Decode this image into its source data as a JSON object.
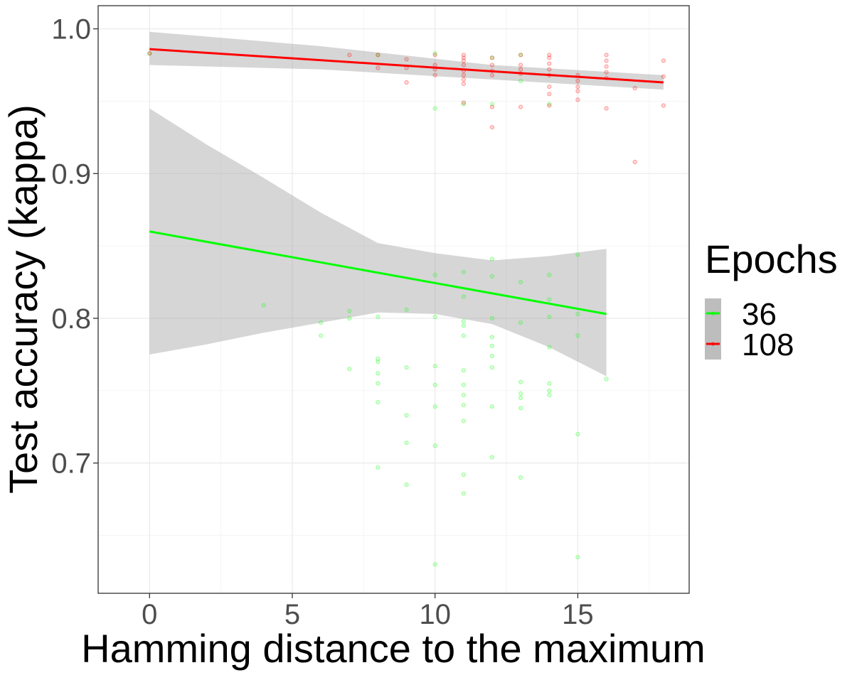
{
  "chart_data": {
    "type": "scatter",
    "xlabel": "Hamming distance to the maximum",
    "ylabel": "Test accuracy (kappa)",
    "xlim": [
      -1.8,
      18.9
    ],
    "ylim": [
      0.61,
      1.016
    ],
    "x_ticks": [
      "0",
      "5",
      "10",
      "15"
    ],
    "x_tick_values": [
      0,
      5,
      10,
      15
    ],
    "y_ticks": [
      "0.7",
      "0.8",
      "0.9",
      "1.0"
    ],
    "y_tick_values": [
      0.7,
      0.8,
      0.9,
      1.0
    ],
    "grid": true,
    "legend": {
      "title": "Epochs",
      "position": "right"
    },
    "series": [
      {
        "name": "36",
        "color": "#00ff00",
        "points": [
          [
            0,
            0.983
          ],
          [
            4,
            0.809
          ],
          [
            6,
            0.797
          ],
          [
            6,
            0.788
          ],
          [
            7,
            0.805
          ],
          [
            7,
            0.8
          ],
          [
            7,
            0.765
          ],
          [
            8,
            0.982
          ],
          [
            8,
            0.801
          ],
          [
            8,
            0.772
          ],
          [
            8,
            0.77
          ],
          [
            8,
            0.762
          ],
          [
            8,
            0.755
          ],
          [
            8,
            0.742
          ],
          [
            8,
            0.697
          ],
          [
            9,
            0.806
          ],
          [
            9,
            0.766
          ],
          [
            9,
            0.733
          ],
          [
            9,
            0.714
          ],
          [
            9,
            0.685
          ],
          [
            10,
            0.983
          ],
          [
            10,
            0.945
          ],
          [
            10,
            0.83
          ],
          [
            10,
            0.801
          ],
          [
            10,
            0.767
          ],
          [
            10,
            0.754
          ],
          [
            10,
            0.739
          ],
          [
            10,
            0.712
          ],
          [
            10,
            0.63
          ],
          [
            11,
            0.948
          ],
          [
            11,
            0.832
          ],
          [
            11,
            0.815
          ],
          [
            11,
            0.798
          ],
          [
            11,
            0.795
          ],
          [
            11,
            0.788
          ],
          [
            11,
            0.764
          ],
          [
            11,
            0.754
          ],
          [
            11,
            0.747
          ],
          [
            11,
            0.74
          ],
          [
            11,
            0.729
          ],
          [
            11,
            0.692
          ],
          [
            11,
            0.679
          ],
          [
            12,
            0.98
          ],
          [
            12,
            0.948
          ],
          [
            12,
            0.841
          ],
          [
            12,
            0.829
          ],
          [
            12,
            0.8
          ],
          [
            12,
            0.787
          ],
          [
            12,
            0.781
          ],
          [
            12,
            0.774
          ],
          [
            12,
            0.766
          ],
          [
            12,
            0.739
          ],
          [
            12,
            0.704
          ],
          [
            13,
            0.982
          ],
          [
            13,
            0.964
          ],
          [
            13,
            0.825
          ],
          [
            13,
            0.797
          ],
          [
            13,
            0.756
          ],
          [
            13,
            0.748
          ],
          [
            13,
            0.745
          ],
          [
            13,
            0.738
          ],
          [
            13,
            0.69
          ],
          [
            14,
            0.948
          ],
          [
            14,
            0.83
          ],
          [
            14,
            0.813
          ],
          [
            14,
            0.801
          ],
          [
            14,
            0.78
          ],
          [
            14,
            0.755
          ],
          [
            14,
            0.75
          ],
          [
            14,
            0.747
          ],
          [
            15,
            0.844
          ],
          [
            15,
            0.803
          ],
          [
            15,
            0.788
          ],
          [
            15,
            0.72
          ],
          [
            15,
            0.635
          ],
          [
            16,
            0.758
          ]
        ],
        "fit": {
          "x": [
            0,
            16
          ],
          "y": [
            0.86,
            0.803
          ]
        },
        "ci": {
          "x": [
            0,
            2,
            4,
            6,
            8,
            10,
            12,
            14,
            16
          ],
          "upper": [
            0.945,
            0.92,
            0.897,
            0.873,
            0.852,
            0.845,
            0.84,
            0.843,
            0.848
          ],
          "lower": [
            0.775,
            0.782,
            0.79,
            0.797,
            0.804,
            0.803,
            0.796,
            0.78,
            0.76
          ]
        }
      },
      {
        "name": "108",
        "color": "#ff0000",
        "points": [
          [
            0,
            0.983
          ],
          [
            7,
            0.982
          ],
          [
            8,
            0.982
          ],
          [
            8,
            0.973
          ],
          [
            9,
            0.979
          ],
          [
            9,
            0.973
          ],
          [
            9,
            0.963
          ],
          [
            10,
            0.982
          ],
          [
            10,
            0.975
          ],
          [
            10,
            0.972
          ],
          [
            10,
            0.968
          ],
          [
            11,
            0.982
          ],
          [
            11,
            0.98
          ],
          [
            11,
            0.978
          ],
          [
            11,
            0.975
          ],
          [
            11,
            0.971
          ],
          [
            11,
            0.968
          ],
          [
            11,
            0.965
          ],
          [
            11,
            0.962
          ],
          [
            11,
            0.949
          ],
          [
            12,
            0.98
          ],
          [
            12,
            0.975
          ],
          [
            12,
            0.971
          ],
          [
            12,
            0.968
          ],
          [
            12,
            0.946
          ],
          [
            12,
            0.932
          ],
          [
            13,
            0.982
          ],
          [
            13,
            0.975
          ],
          [
            13,
            0.972
          ],
          [
            13,
            0.969
          ],
          [
            13,
            0.946
          ],
          [
            14,
            0.982
          ],
          [
            14,
            0.98
          ],
          [
            14,
            0.976
          ],
          [
            14,
            0.972
          ],
          [
            14,
            0.968
          ],
          [
            14,
            0.96
          ],
          [
            14,
            0.955
          ],
          [
            14,
            0.947
          ],
          [
            15,
            0.968
          ],
          [
            15,
            0.964
          ],
          [
            15,
            0.96
          ],
          [
            15,
            0.957
          ],
          [
            15,
            0.951
          ],
          [
            16,
            0.982
          ],
          [
            16,
            0.978
          ],
          [
            16,
            0.974
          ],
          [
            16,
            0.97
          ],
          [
            16,
            0.966
          ],
          [
            16,
            0.945
          ],
          [
            17,
            0.959
          ],
          [
            17,
            0.908
          ],
          [
            18,
            0.978
          ],
          [
            18,
            0.967
          ],
          [
            18,
            0.947
          ]
        ],
        "fit": {
          "x": [
            0,
            18
          ],
          "y": [
            0.986,
            0.963
          ]
        },
        "ci": {
          "x": [
            0,
            6,
            12,
            18
          ],
          "upper": [
            0.998,
            0.988,
            0.975,
            0.968
          ],
          "lower": [
            0.975,
            0.972,
            0.965,
            0.958
          ]
        }
      }
    ]
  }
}
